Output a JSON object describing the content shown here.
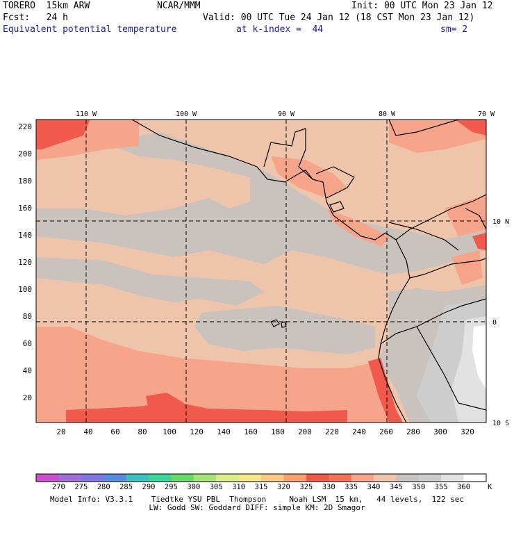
{
  "header": {
    "model": "TORERO  15km ARW",
    "agency": "NCAR/MMM",
    "init": "Init: 00 UTC Mon 23 Jan 12",
    "fcst": "Fcst:   24 h",
    "valid": "Valid: 00 UTC Tue 24 Jan 12 (18 CST Mon 23 Jan 12)",
    "field": "Equivalent potential temperature",
    "level": "at k-index =  44",
    "smooth": "sm= 2"
  },
  "map": {
    "lon_labels": [
      "110 W",
      "100 W",
      "90 W",
      "80 W",
      "70 W"
    ],
    "lat_labels": [
      "10 N",
      "0",
      "10 S"
    ],
    "y_ticks": [
      "220",
      "200",
      "180",
      "160",
      "140",
      "120",
      "100",
      "80",
      "60",
      "40",
      "20"
    ],
    "x_ticks": [
      "20",
      "40",
      "60",
      "80",
      "100",
      "120",
      "140",
      "160",
      "180",
      "200",
      "220",
      "240",
      "260",
      "280",
      "300",
      "320"
    ]
  },
  "colorbar": {
    "labels": [
      "270",
      "275",
      "280",
      "285",
      "290",
      "295",
      "300",
      "305",
      "310",
      "315",
      "320",
      "325",
      "330",
      "335",
      "340",
      "345",
      "350",
      "355",
      "360"
    ],
    "unit": "K",
    "colors": [
      "#cc4fcc",
      "#a070d8",
      "#8078e0",
      "#5a8be0",
      "#3fbfbf",
      "#3fd49a",
      "#6ad86a",
      "#a6e27a",
      "#dcec8a",
      "#f6e68c",
      "#f9c98a",
      "#f79f72",
      "#ef5a4d",
      "#f5705a",
      "#f7a58a",
      "#eec4aa",
      "#c9c2bd",
      "#cdcdcd",
      "#e2e2e2",
      "#ffffff"
    ]
  },
  "footer": {
    "line1": "Model Info: V3.3.1    Tiedtke YSU PBL  Thompson     Noah LSM  15 km,   44 levels,  122 sec",
    "line2": "LW: Godd SW: Goddard DIFF: simple KM: 2D Smagor"
  }
}
